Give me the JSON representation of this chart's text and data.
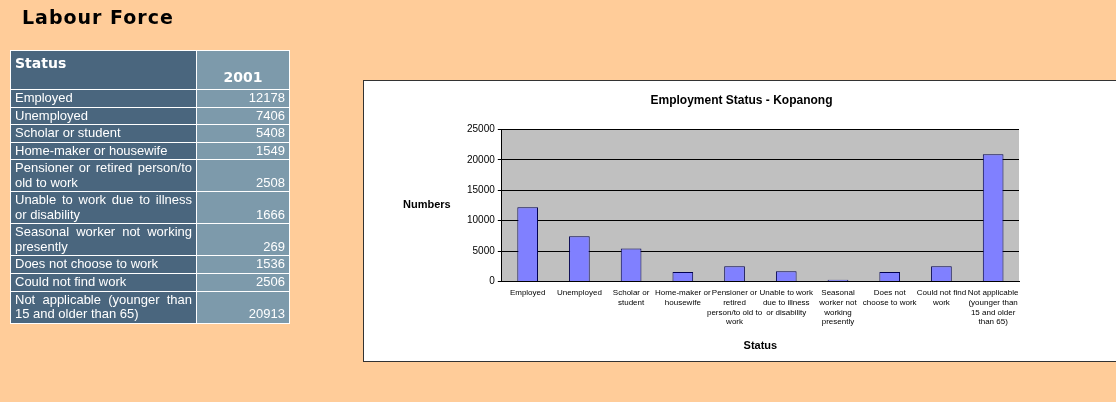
{
  "chart_data": [
    {
      "type": "other",
      "title": "Labour Force",
      "xlabel": "Status",
      "categories": [
        "Employed",
        "Unemployed",
        "Scholar or student",
        "Home-maker or housewife",
        "Pensioner or retired person/to old to work",
        "Unable to work due to illness or disability",
        "Seasonal worker not working presently",
        "Does not choose to work",
        "Could not find work",
        "Not applicable (younger than 15 and older than 65)"
      ],
      "series": [
        {
          "name": "2001",
          "values": [
            12178,
            7406,
            5408,
            1549,
            2508,
            1666,
            269,
            1536,
            2506,
            20913
          ]
        }
      ],
      "data_labels": true
    },
    {
      "type": "bar",
      "title": "Employment Status - Kopanong",
      "xlabel": "Status",
      "ylabel": "Numbers",
      "categories": [
        "Employed",
        "Unemployed",
        "Scholar or student",
        "Home-maker or housewife",
        "Pensioner or retired person/to old to work",
        "Unable to work due to illness or disability",
        "Seasonal worker not working presently",
        "Does not choose to work",
        "Could not find work",
        "Not applicable (younger than 15 and older than 65)"
      ],
      "values": [
        12178,
        7406,
        5408,
        1549,
        2508,
        1666,
        269,
        1536,
        2506,
        20913
      ],
      "color": "#8080ff",
      "ylim": [
        0,
        25000
      ],
      "yticks": [
        0,
        5000,
        10000,
        15000,
        20000,
        25000
      ],
      "grid": "y",
      "legend": false
    }
  ]
}
